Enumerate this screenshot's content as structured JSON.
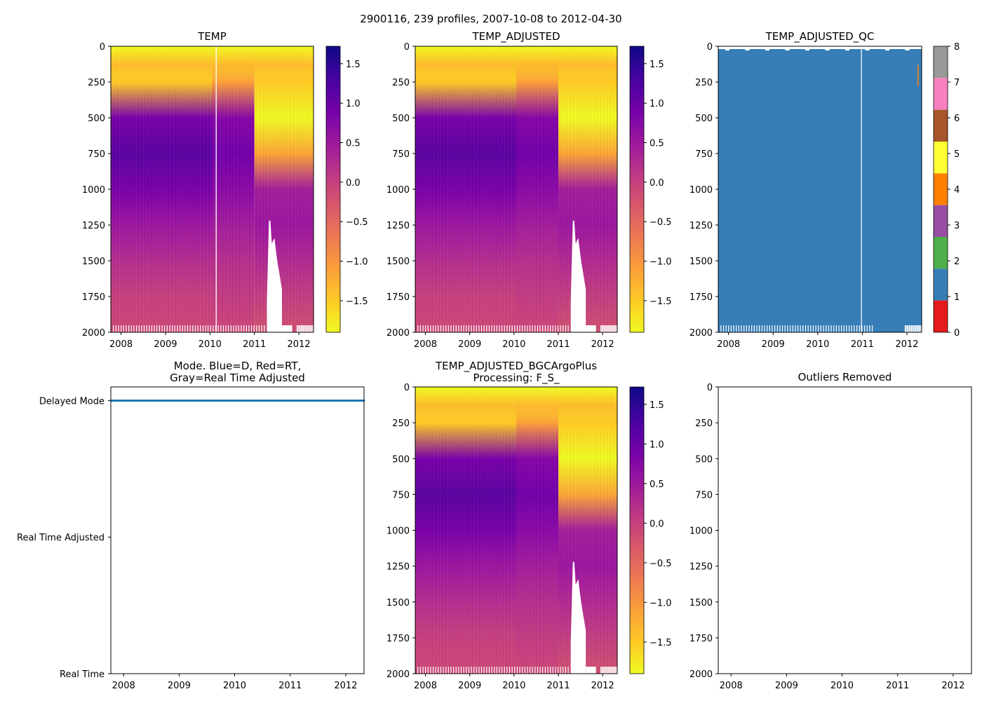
{
  "suptitle": "2900116, 239 profiles, 2007-10-08 to 2012-04-30",
  "colors": {
    "plasma": [
      "#0d0887",
      "#46039f",
      "#7201a8",
      "#9c179e",
      "#bd3786",
      "#d8576b",
      "#ed7953",
      "#fb9f3a",
      "#fdca26",
      "#f0f921"
    ],
    "qc": [
      "#e41a1c",
      "#377eb8",
      "#4daf4a",
      "#984ea3",
      "#ff7f00",
      "#ffff33",
      "#a65628",
      "#f781bf",
      "#999999"
    ],
    "mode_line": "#1f77b4"
  },
  "chart_data": [
    {
      "id": "temp",
      "type": "heatmap",
      "title": "TEMP",
      "xlabel": "",
      "ylabel": "",
      "x_ticks": [
        "2008",
        "2009",
        "2010",
        "2011",
        "2012"
      ],
      "xlim": [
        2007.77,
        2012.33
      ],
      "y_ticks": [
        0,
        250,
        500,
        750,
        1000,
        1250,
        1500,
        1750,
        2000
      ],
      "ylim": [
        2000,
        0
      ],
      "colorbar": {
        "ticks": [
          "1.5",
          "1.0",
          "0.5",
          "0.0",
          "−0.5",
          "−1.0",
          "−1.5"
        ],
        "values": [
          1.5,
          1.0,
          0.5,
          0.0,
          -0.5,
          -1.0,
          -1.5
        ],
        "range": [
          -1.9,
          1.72
        ],
        "cmap": "plasma_r"
      }
    },
    {
      "id": "temp_adj",
      "type": "heatmap",
      "title": "TEMP_ADJUSTED",
      "x_ticks": [
        "2008",
        "2009",
        "2010",
        "2011",
        "2012"
      ],
      "xlim": [
        2007.77,
        2012.33
      ],
      "y_ticks": [
        0,
        250,
        500,
        750,
        1000,
        1250,
        1500,
        1750,
        2000
      ],
      "ylim": [
        2000,
        0
      ],
      "colorbar": {
        "ticks": [
          "1.5",
          "1.0",
          "0.5",
          "0.0",
          "−0.5",
          "−1.0",
          "−1.5"
        ],
        "values": [
          1.5,
          1.0,
          0.5,
          0.0,
          -0.5,
          -1.0,
          -1.5
        ],
        "range": [
          -1.9,
          1.72
        ],
        "cmap": "plasma_r"
      }
    },
    {
      "id": "temp_qc",
      "type": "heatmap",
      "title": "TEMP_ADJUSTED_QC",
      "dominant_flag": 1,
      "x_ticks": [
        "2008",
        "2009",
        "2010",
        "2011",
        "2012"
      ],
      "xlim": [
        2007.77,
        2012.33
      ],
      "y_ticks": [
        0,
        250,
        500,
        750,
        1000,
        1250,
        1500,
        1750,
        2000
      ],
      "ylim": [
        2000,
        0
      ],
      "colorbar": {
        "ticks": [
          "8",
          "7",
          "6",
          "5",
          "4",
          "3",
          "2",
          "1",
          "0"
        ],
        "values": [
          8,
          7,
          6,
          5,
          4,
          3,
          2,
          1,
          0
        ],
        "range": [
          0,
          8
        ],
        "cmap": "qc"
      }
    },
    {
      "id": "mode",
      "type": "line",
      "title": "Mode. Blue=D, Red=RT,",
      "title2": "Gray=Real Time Adjusted",
      "x_ticks": [
        "2008",
        "2009",
        "2010",
        "2011",
        "2012"
      ],
      "xlim": [
        2007.77,
        2012.33
      ],
      "y_tick_labels": [
        "Delayed Mode",
        "Real Time Adjusted",
        "Real Time"
      ],
      "y_tick_values": [
        2,
        1,
        0
      ],
      "ylim": [
        0,
        2.1
      ],
      "series": [
        {
          "name": "Delayed Mode",
          "x": [
            2007.77,
            2012.33
          ],
          "values": [
            2,
            2
          ]
        }
      ]
    },
    {
      "id": "temp_bgc",
      "type": "heatmap",
      "title": "TEMP_ADJUSTED_BGCArgoPlus",
      "title2": "Processing: F_S_",
      "x_ticks": [
        "2008",
        "2009",
        "2010",
        "2011",
        "2012"
      ],
      "xlim": [
        2007.77,
        2012.33
      ],
      "y_ticks": [
        0,
        250,
        500,
        750,
        1000,
        1250,
        1500,
        1750,
        2000
      ],
      "ylim": [
        2000,
        0
      ],
      "colorbar": {
        "ticks": [
          "1.5",
          "1.0",
          "0.5",
          "0.0",
          "−0.5",
          "−1.0",
          "−1.5"
        ],
        "values": [
          1.5,
          1.0,
          0.5,
          0.0,
          -0.5,
          -1.0,
          -1.5
        ],
        "range": [
          -1.9,
          1.72
        ],
        "cmap": "plasma_r"
      }
    },
    {
      "id": "outliers",
      "type": "scatter",
      "title": "Outliers Removed",
      "x_ticks": [
        "2008",
        "2009",
        "2010",
        "2011",
        "2012"
      ],
      "xlim": [
        2007.77,
        2012.33
      ],
      "y_ticks": [
        0,
        250,
        500,
        750,
        1000,
        1250,
        1500,
        1750,
        2000
      ],
      "ylim": [
        2000,
        0
      ],
      "series": []
    }
  ]
}
